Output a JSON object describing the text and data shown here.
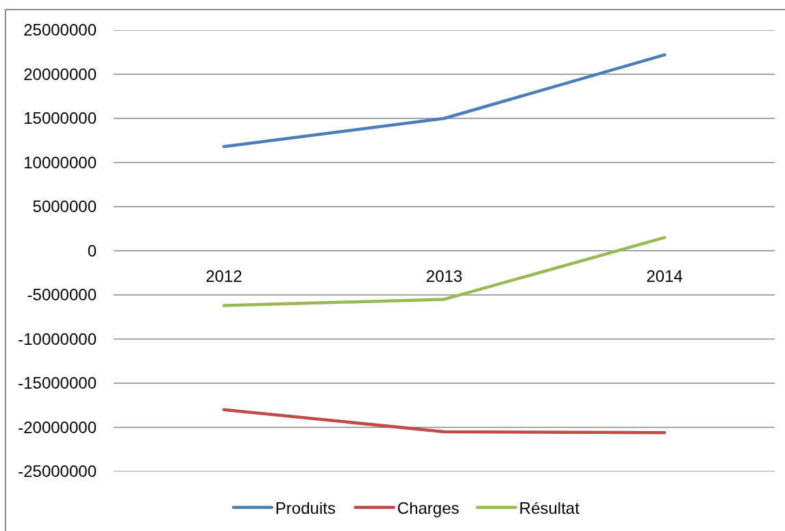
{
  "chart_data": {
    "type": "line",
    "categories": [
      "2012",
      "2013",
      "2014"
    ],
    "series": [
      {
        "name": "Produits",
        "color": "#4a7ebb",
        "values": [
          11800000,
          15000000,
          22200000
        ]
      },
      {
        "name": "Charges",
        "color": "#be4b48",
        "values": [
          -18000000,
          -20500000,
          -20600000
        ]
      },
      {
        "name": "Résultat",
        "color": "#98b954",
        "values": [
          -6200000,
          -5500000,
          1500000
        ]
      }
    ],
    "ylim": [
      -25000000,
      25000000
    ],
    "yticks": [
      -25000000,
      -20000000,
      -15000000,
      -10000000,
      -5000000,
      0,
      5000000,
      10000000,
      15000000,
      20000000,
      25000000
    ],
    "grid": "y",
    "legend": "bottom",
    "marker": "none",
    "line_style": "solid"
  }
}
